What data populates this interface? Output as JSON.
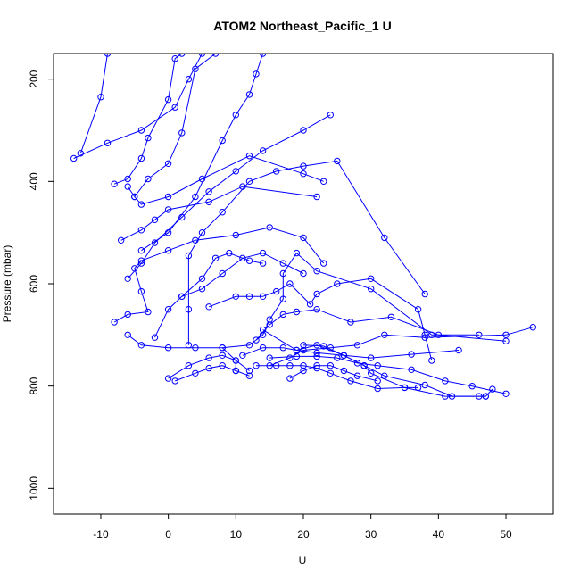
{
  "chart_data": {
    "type": "line",
    "title": "ATOM2 Northeast_Pacific_1 U",
    "xlabel": "U",
    "ylabel": "Pressure (mbar)",
    "xlim": [
      -17,
      57
    ],
    "ylim": [
      1050,
      150
    ],
    "y_reversed": true,
    "x_ticks": [
      -10,
      0,
      10,
      20,
      30,
      40,
      50
    ],
    "y_ticks": [
      200,
      400,
      600,
      800,
      1000
    ],
    "grid": false,
    "legend": "none",
    "marker": "open-circle",
    "color": "#0000ff",
    "series": [
      {
        "points": [
          [
            -14,
            355
          ],
          [
            -9,
            325
          ],
          [
            -4,
            300
          ],
          [
            1,
            255
          ],
          [
            3,
            200
          ],
          [
            5,
            150
          ]
        ]
      },
      {
        "points": [
          [
            -13,
            345
          ],
          [
            -10,
            235
          ],
          [
            -9,
            150
          ]
        ]
      },
      {
        "points": [
          [
            -8,
            405
          ],
          [
            -6,
            395
          ],
          [
            -4,
            355
          ],
          [
            -3,
            315
          ],
          [
            0,
            240
          ],
          [
            1,
            160
          ],
          [
            2,
            150
          ]
        ]
      },
      {
        "points": [
          [
            -6,
            410
          ],
          [
            -5,
            430
          ],
          [
            -4,
            445
          ],
          [
            0,
            430
          ],
          [
            5,
            395
          ],
          [
            12,
            350
          ],
          [
            20,
            385
          ],
          [
            23,
            400
          ]
        ]
      },
      {
        "points": [
          [
            -5,
            430
          ],
          [
            -3,
            395
          ],
          [
            0,
            365
          ],
          [
            2,
            305
          ],
          [
            4,
            180
          ],
          [
            7,
            150
          ]
        ]
      },
      {
        "points": [
          [
            -7,
            515
          ],
          [
            -4,
            495
          ],
          [
            -2,
            475
          ],
          [
            0,
            455
          ],
          [
            6,
            440
          ],
          [
            11,
            410
          ],
          [
            22,
            430
          ]
        ]
      },
      {
        "points": [
          [
            -4,
            535
          ],
          [
            0,
            500
          ],
          [
            4,
            430
          ],
          [
            8,
            320
          ],
          [
            10,
            270
          ],
          [
            12,
            230
          ],
          [
            13,
            190
          ],
          [
            14,
            150
          ]
        ]
      },
      {
        "points": [
          [
            -6,
            590
          ],
          [
            -4,
            560
          ],
          [
            -2,
            520
          ],
          [
            2,
            470
          ],
          [
            6,
            420
          ],
          [
            10,
            380
          ],
          [
            14,
            340
          ],
          [
            20,
            300
          ],
          [
            24,
            270
          ]
        ]
      },
      {
        "points": [
          [
            -8,
            675
          ],
          [
            -6,
            660
          ],
          [
            -3,
            655
          ],
          [
            -4,
            615
          ],
          [
            -5,
            570
          ],
          [
            -4,
            555
          ],
          [
            0,
            535
          ],
          [
            4,
            515
          ],
          [
            10,
            505
          ],
          [
            15,
            490
          ],
          [
            20,
            510
          ],
          [
            23,
            560
          ]
        ]
      },
      {
        "points": [
          [
            -6,
            700
          ],
          [
            -4,
            720
          ],
          [
            0,
            725
          ],
          [
            4,
            725
          ],
          [
            8,
            725
          ],
          [
            10,
            750
          ],
          [
            10,
            770
          ]
        ]
      },
      {
        "points": [
          [
            -2,
            705
          ],
          [
            0,
            650
          ],
          [
            2,
            625
          ],
          [
            5,
            590
          ],
          [
            7,
            550
          ],
          [
            9,
            540
          ],
          [
            12,
            555
          ],
          [
            14,
            560
          ]
        ]
      },
      {
        "points": [
          [
            0,
            785
          ],
          [
            3,
            760
          ],
          [
            6,
            745
          ],
          [
            8,
            740
          ],
          [
            10,
            750
          ],
          [
            12,
            770
          ]
        ]
      },
      {
        "points": [
          [
            1,
            790
          ],
          [
            4,
            775
          ],
          [
            6,
            765
          ],
          [
            8,
            760
          ],
          [
            10,
            770
          ],
          [
            12,
            780
          ]
        ]
      },
      {
        "points": [
          [
            3,
            720
          ],
          [
            3,
            650
          ],
          [
            3,
            545
          ],
          [
            5,
            500
          ],
          [
            8,
            460
          ],
          [
            12,
            400
          ],
          [
            16,
            380
          ],
          [
            20,
            370
          ],
          [
            25,
            360
          ],
          [
            32,
            510
          ],
          [
            38,
            620
          ]
        ]
      },
      {
        "points": [
          [
            2,
            625
          ],
          [
            5,
            610
          ],
          [
            8,
            580
          ],
          [
            11,
            550
          ],
          [
            14,
            540
          ],
          [
            17,
            560
          ],
          [
            20,
            580
          ]
        ]
      },
      {
        "points": [
          [
            6,
            645
          ],
          [
            10,
            625
          ],
          [
            12,
            625
          ],
          [
            14,
            625
          ],
          [
            16,
            615
          ],
          [
            18,
            600
          ],
          [
            21,
            640
          ],
          [
            22,
            620
          ],
          [
            25,
            600
          ],
          [
            30,
            590
          ],
          [
            37,
            650
          ],
          [
            38,
            700
          ],
          [
            39,
            750
          ]
        ]
      },
      {
        "points": [
          [
            8,
            725
          ],
          [
            12,
            720
          ],
          [
            14,
            700
          ],
          [
            15,
            670
          ],
          [
            17,
            630
          ],
          [
            17,
            580
          ],
          [
            19,
            540
          ],
          [
            22,
            575
          ],
          [
            30,
            610
          ],
          [
            39,
            700
          ],
          [
            46,
            700
          ]
        ]
      },
      {
        "points": [
          [
            13,
            710
          ],
          [
            15,
            680
          ],
          [
            17,
            660
          ],
          [
            19,
            655
          ],
          [
            22,
            650
          ],
          [
            27,
            675
          ],
          [
            33,
            665
          ],
          [
            40,
            700
          ],
          [
            50,
            712
          ]
        ]
      },
      {
        "points": [
          [
            11,
            740
          ],
          [
            14,
            725
          ],
          [
            17,
            725
          ],
          [
            19,
            730
          ],
          [
            22,
            735
          ],
          [
            26,
            740
          ],
          [
            30,
            745
          ],
          [
            36,
            738
          ],
          [
            43,
            730
          ]
        ]
      },
      {
        "points": [
          [
            15,
            760
          ],
          [
            18,
            745
          ],
          [
            20,
            730
          ],
          [
            24,
            725
          ],
          [
            28,
            720
          ],
          [
            32,
            700
          ],
          [
            38,
            705
          ],
          [
            50,
            700
          ],
          [
            54,
            685
          ]
        ]
      },
      {
        "points": [
          [
            13,
            760
          ],
          [
            16,
            760
          ],
          [
            18,
            760
          ],
          [
            20,
            760
          ],
          [
            22,
            765
          ],
          [
            24,
            775
          ],
          [
            27,
            790
          ],
          [
            31,
            805
          ],
          [
            35,
            803
          ],
          [
            37,
            803
          ]
        ]
      },
      {
        "points": [
          [
            18,
            785
          ],
          [
            20,
            770
          ],
          [
            22,
            760
          ],
          [
            24,
            760
          ],
          [
            26,
            770
          ],
          [
            28,
            780
          ],
          [
            31,
            790
          ]
        ]
      },
      {
        "points": [
          [
            15,
            745
          ],
          [
            19,
            742
          ],
          [
            22,
            742
          ],
          [
            25,
            745
          ],
          [
            28,
            755
          ],
          [
            31,
            760
          ],
          [
            36,
            768
          ],
          [
            41,
            790
          ],
          [
            45,
            800
          ],
          [
            50,
            815
          ]
        ]
      },
      {
        "points": [
          [
            20,
            720
          ],
          [
            23,
            722
          ],
          [
            26,
            740
          ],
          [
            29,
            760
          ],
          [
            32,
            780
          ],
          [
            38,
            798
          ],
          [
            42,
            820
          ],
          [
            47,
            820
          ],
          [
            48,
            806
          ]
        ]
      },
      {
        "points": [
          [
            14,
            690
          ],
          [
            19,
            730
          ],
          [
            22,
            720
          ],
          [
            26,
            740
          ],
          [
            29,
            760
          ],
          [
            30,
            775
          ],
          [
            35,
            803
          ],
          [
            41,
            820
          ],
          [
            46,
            820
          ],
          [
            47,
            820
          ]
        ]
      }
    ]
  }
}
